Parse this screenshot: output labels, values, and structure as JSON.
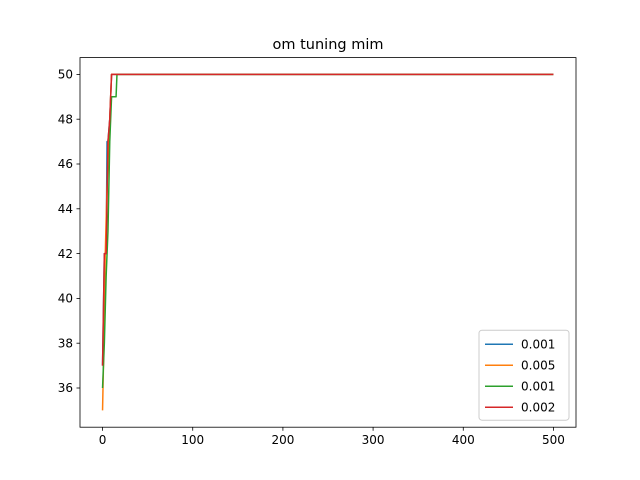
{
  "chart_data": {
    "type": "line",
    "title": "om tuning mim",
    "xlabel": "",
    "ylabel": "",
    "xlim": [
      -25,
      525
    ],
    "ylim": [
      34.25,
      50.75
    ],
    "xticks": [
      0,
      100,
      200,
      300,
      400,
      500
    ],
    "yticks": [
      36,
      38,
      40,
      42,
      44,
      46,
      48,
      50
    ],
    "grid": false,
    "legend_position": "lower-right",
    "series": [
      {
        "name": "0.001",
        "color": "#1f77b4",
        "x": [
          0,
          2,
          4,
          5,
          6,
          8,
          10,
          500
        ],
        "y": [
          37,
          42,
          42,
          47,
          47,
          48,
          50,
          50
        ]
      },
      {
        "name": "0.005",
        "color": "#ff7f0e",
        "x": [
          0,
          1,
          3,
          5,
          7,
          9,
          10,
          500
        ],
        "y": [
          35,
          37,
          42,
          45,
          47,
          49,
          50,
          50
        ]
      },
      {
        "name": "0.001",
        "color": "#2ca02c",
        "x": [
          0,
          2,
          4,
          6,
          8,
          10,
          15,
          16,
          500
        ],
        "y": [
          36,
          38,
          41,
          43,
          47,
          49,
          49,
          50,
          50
        ]
      },
      {
        "name": "0.002",
        "color": "#d62728",
        "x": [
          0,
          2,
          4,
          6,
          8,
          10,
          500
        ],
        "y": [
          37,
          42,
          42,
          47,
          48,
          50,
          50
        ]
      }
    ]
  }
}
